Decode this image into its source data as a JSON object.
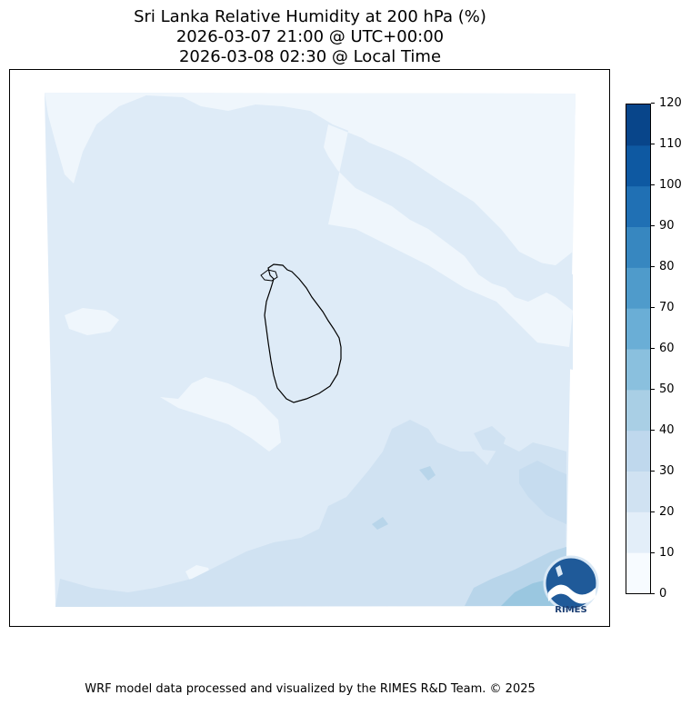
{
  "title": {
    "line1": "Sri Lanka Relative Humidity at 200 hPa (%)",
    "line2": "2026-03-07 21:00 @ UTC+00:00",
    "line3": "2026-03-08 02:30 @ Local Time"
  },
  "map": {
    "variable": "Relative Humidity",
    "level": "200 hPa",
    "region": "Sri Lanka",
    "fill_colors": [
      "#eff6fc",
      "#deebf7",
      "#d0e2f2",
      "#b8d5ea",
      "#9ac7e0"
    ]
  },
  "colorbar": {
    "ticks": [
      "120",
      "110",
      "100",
      "90",
      "80",
      "70",
      "60",
      "50",
      "40",
      "30",
      "20",
      "10",
      "0"
    ],
    "levels": [
      0,
      10,
      20,
      30,
      40,
      50,
      60,
      70,
      80,
      90,
      100,
      110,
      120
    ],
    "colors": [
      "#f7fbff",
      "#e3eef9",
      "#d0e2f2",
      "#bfd8ed",
      "#a9cfe5",
      "#8ac0de",
      "#6aaed6",
      "#4f9bcb",
      "#3787c0",
      "#2070b4",
      "#0e59a2",
      "#08458a"
    ]
  },
  "logo": {
    "text": "RIMES"
  },
  "footer": {
    "text": "WRF model data processed and visualized by the RIMES R&D Team. © 2025"
  }
}
